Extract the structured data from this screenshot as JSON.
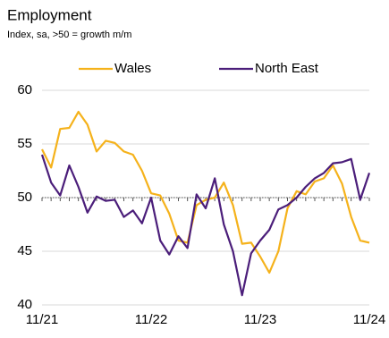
{
  "chart_data": {
    "type": "line",
    "title": "Employment",
    "subtitle": "Index, sa, >50 = growth m/m",
    "categories": [
      "11/21",
      null,
      null,
      null,
      null,
      null,
      null,
      null,
      null,
      null,
      null,
      null,
      "11/22",
      null,
      null,
      null,
      null,
      null,
      null,
      null,
      null,
      null,
      null,
      null,
      "11/23",
      null,
      null,
      null,
      null,
      null,
      null,
      null,
      null,
      null,
      null,
      null,
      "11/24"
    ],
    "series": [
      {
        "name": "Wales",
        "color": "#f5b21b",
        "values": [
          54.5,
          52.8,
          56.4,
          56.5,
          58.0,
          56.8,
          54.3,
          55.3,
          55.1,
          54.3,
          54.0,
          52.5,
          50.4,
          50.2,
          48.5,
          46.0,
          45.8,
          49.3,
          49.8,
          50.0,
          51.4,
          49.3,
          45.7,
          45.8,
          44.5,
          43.0,
          45.0,
          49.0,
          50.6,
          50.3,
          51.5,
          51.8,
          53.0,
          51.3,
          48.2,
          46.0,
          45.8
        ]
      },
      {
        "name": "North East",
        "color": "#4b1e7a",
        "values": [
          54.0,
          51.4,
          50.2,
          53.0,
          51.0,
          48.6,
          50.1,
          49.7,
          49.8,
          48.2,
          48.8,
          47.6,
          50.0,
          46.0,
          44.7,
          46.4,
          45.3,
          50.3,
          49.0,
          51.8,
          47.5,
          45.0,
          40.9,
          44.8,
          46.0,
          47.0,
          48.9,
          49.3,
          50.0,
          51.0,
          51.8,
          52.3,
          53.2,
          53.3,
          53.6,
          49.8,
          52.3
        ]
      }
    ],
    "ylim": [
      40,
      60
    ],
    "yticks": [
      40,
      45,
      50,
      55,
      60
    ],
    "grid": true,
    "hline": 50,
    "legend": "top"
  }
}
